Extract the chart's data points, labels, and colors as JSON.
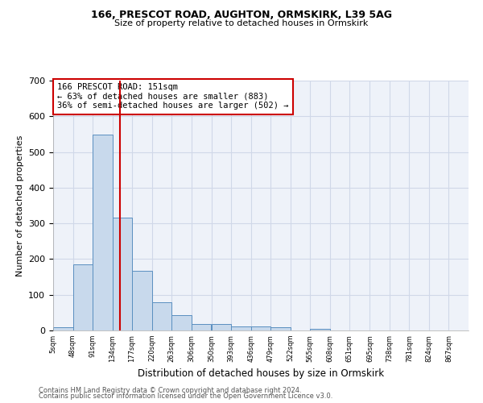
{
  "title1": "166, PRESCOT ROAD, AUGHTON, ORMSKIRK, L39 5AG",
  "title2": "Size of property relative to detached houses in Ormskirk",
  "xlabel": "Distribution of detached houses by size in Ormskirk",
  "ylabel": "Number of detached properties",
  "bin_edges": [
    5,
    48,
    91,
    134,
    177,
    220,
    263,
    306,
    350,
    393,
    436,
    479,
    522,
    565,
    608,
    651,
    695,
    738,
    781,
    824,
    867
  ],
  "bar_heights": [
    8,
    186,
    548,
    316,
    166,
    78,
    42,
    19,
    19,
    12,
    11,
    8,
    0,
    5,
    0,
    0,
    0,
    0,
    0,
    0
  ],
  "bar_color": "#c8d9ec",
  "bar_edge_color": "#5a8fc0",
  "grid_color": "#d0d8e8",
  "property_size": 151,
  "vline_color": "#cc0000",
  "annotation_text": "166 PRESCOT ROAD: 151sqm\n← 63% of detached houses are smaller (883)\n36% of semi-detached houses are larger (502) →",
  "annotation_box_color": "#cc0000",
  "ylim": [
    0,
    700
  ],
  "yticks": [
    0,
    100,
    200,
    300,
    400,
    500,
    600,
    700
  ],
  "footer1": "Contains HM Land Registry data © Crown copyright and database right 2024.",
  "footer2": "Contains public sector information licensed under the Open Government Licence v3.0.",
  "background_color": "#eef2f9",
  "tick_labels": [
    "5sqm",
    "48sqm",
    "91sqm",
    "134sqm",
    "177sqm",
    "220sqm",
    "263sqm",
    "306sqm",
    "350sqm",
    "393sqm",
    "436sqm",
    "479sqm",
    "522sqm",
    "565sqm",
    "608sqm",
    "651sqm",
    "695sqm",
    "738sqm",
    "781sqm",
    "824sqm",
    "867sqm"
  ]
}
